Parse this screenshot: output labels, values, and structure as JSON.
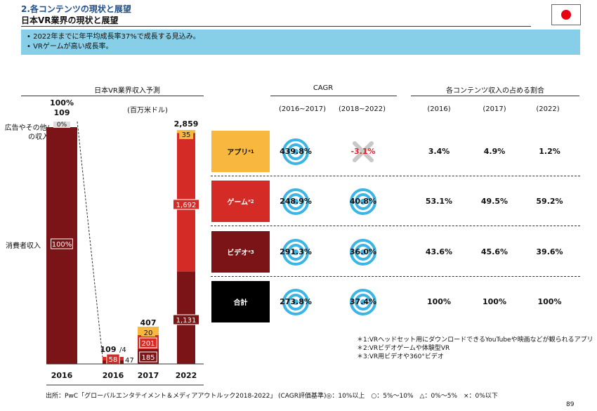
{
  "header": {
    "section_title": "2.各コンテンツの現状と展望",
    "page_title": "日本VR業界の現状と展望",
    "flag_icon": "japan-flag-icon"
  },
  "summary": [
    "2022年までに年平均成長率37%で成長する見込み。",
    "VRゲームが高い成長率。"
  ],
  "left_chart": {
    "title": "日本VR業界収入予測",
    "unit": "(百万米ドル)",
    "side_labels": [
      "広告やその他/の収入",
      "消費者収入"
    ],
    "share_bar": {
      "year": "2016",
      "top_pct": "100%",
      "top_total": "109",
      "ad_pct": "0%",
      "consumer_pct": "100%"
    },
    "small_2016_labels": {
      "total": "109",
      "ad": "/4",
      "consumer": "47",
      "game": "58"
    }
  },
  "chart_data": {
    "type": "bar",
    "title": "日本VR業界収入予測",
    "ylabel": "(百万米ドル)",
    "categories": [
      "2016",
      "2016",
      "2017",
      "2022"
    ],
    "series": [
      {
        "name": "ビデオ",
        "values": [
          100,
          47,
          185,
          1131
        ]
      },
      {
        "name": "ゲーム",
        "values": [
          0,
          58,
          201,
          1692
        ]
      },
      {
        "name": "アプリ",
        "values": [
          0,
          4,
          20,
          35
        ]
      }
    ],
    "totals": [
      "109",
      "109",
      "407",
      "2,859"
    ],
    "labels": {
      "col0": [
        "100%",
        "0%"
      ],
      "col1": [
        "58",
        "",
        ""
      ],
      "col2": [
        "185",
        "201",
        "20"
      ],
      "col3": [
        "1,131",
        "1,692",
        "35"
      ]
    },
    "ylim": [
      0,
      2900
    ],
    "colors": {
      "ビデオ": "#7a1416",
      "ゲーム": "#d52b26",
      "アプリ": "#f8b73f",
      "total_col": "#7a1416"
    }
  },
  "cagr": {
    "title": "CAGR",
    "periods": [
      "(2016~2017)",
      "(2018~2022)"
    ]
  },
  "share": {
    "title": "各コンテンツ収入の占める割合",
    "years": [
      "(2016)",
      "(2017)",
      "(2022)"
    ]
  },
  "rows": [
    {
      "name": "アプリ",
      "mark": "*1",
      "color": "#f8b73f",
      "text_color": "#111",
      "cagr1": "439.8%",
      "cagr1_icon": "target-icon",
      "cagr2": "-3.1%",
      "cagr2_icon": "cross-icon",
      "s2016": "3.4%",
      "s2017": "4.9%",
      "s2022": "1.2%"
    },
    {
      "name": "ゲーム",
      "mark": "*2",
      "color": "#d52b26",
      "text_color": "#fff",
      "cagr1": "248.9%",
      "cagr1_icon": "target-icon",
      "cagr2": "40.8%",
      "cagr2_icon": "target-icon",
      "s2016": "53.1%",
      "s2017": "49.5%",
      "s2022": "59.2%"
    },
    {
      "name": "ビデオ",
      "mark": "*3",
      "color": "#7a1416",
      "text_color": "#fff",
      "cagr1": "291.3%",
      "cagr1_icon": "target-icon",
      "cagr2": "36.0%",
      "cagr2_icon": "target-icon",
      "s2016": "43.6%",
      "s2017": "45.6%",
      "s2022": "39.6%"
    },
    {
      "name": "合計",
      "mark": "",
      "color": "#000000",
      "text_color": "#fff",
      "cagr1": "273.8%",
      "cagr1_icon": "target-icon",
      "cagr2": "37.4%",
      "cagr2_icon": "target-icon",
      "s2016": "100%",
      "s2017": "100%",
      "s2022": "100%"
    }
  ],
  "notes": [
    "＊1:VRヘッドセット用にダウンロードできるYouTubeや映画などが観られるアプリ",
    "＊2:VRビデオゲームや体験型VR",
    "＊3:VR用ビデオや360°ビデオ"
  ],
  "footer": {
    "source": "出所：PwC「グローバルエンタテイメント＆メディアアウトルック2018-2022」",
    "legend": "(CAGR評価基準)◎：10%以上　○：5%～10%　△：0%～5%　×：0%以下",
    "page_number": "89"
  }
}
